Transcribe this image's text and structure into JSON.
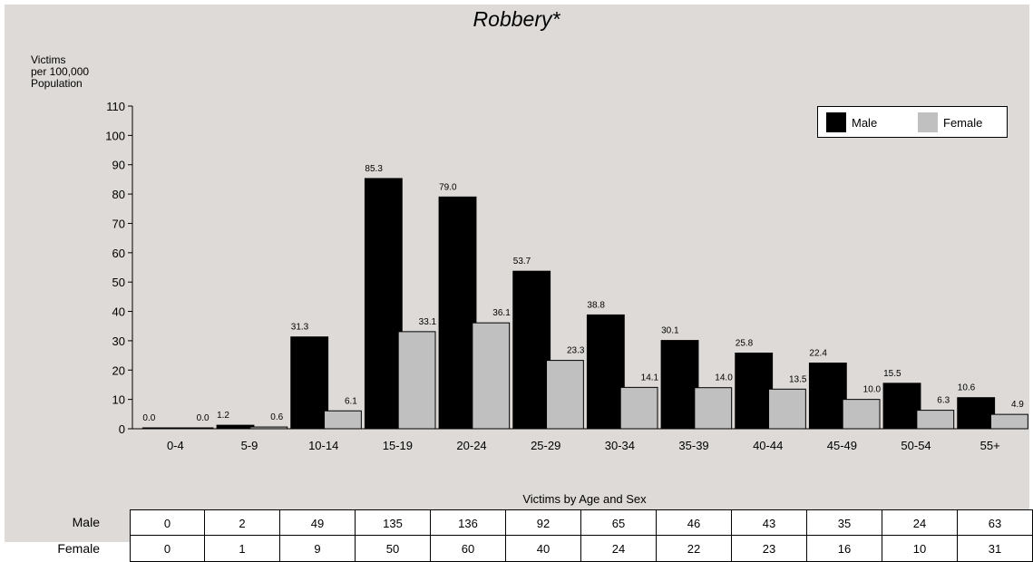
{
  "chart_data": {
    "type": "bar",
    "title": "Robbery*",
    "ylabel": "Victims\nper 100,000\nPopulation",
    "xlabel": "Victims by Age and Sex",
    "ylim": [
      0,
      110
    ],
    "yticks": [
      0,
      10,
      20,
      30,
      40,
      50,
      60,
      70,
      80,
      90,
      100,
      110
    ],
    "grid": false,
    "legend_position": "top-right",
    "categories": [
      "0-4",
      "5-9",
      "10-14",
      "15-19",
      "20-24",
      "25-29",
      "30-34",
      "35-39",
      "40-44",
      "45-49",
      "50-54",
      "55+"
    ],
    "series": [
      {
        "name": "Male",
        "color": "#000000",
        "values": [
          0.0,
          1.2,
          31.3,
          85.3,
          79.0,
          53.7,
          38.8,
          30.1,
          25.8,
          22.4,
          15.5,
          10.6
        ]
      },
      {
        "name": "Female",
        "color": "#c0c0c0",
        "values": [
          0.0,
          0.6,
          6.1,
          33.1,
          36.1,
          23.3,
          14.1,
          14.0,
          13.5,
          10.0,
          6.3,
          4.9
        ]
      }
    ],
    "data_labels": {
      "Male": [
        "0.0",
        "1.2",
        "31.3",
        "85.3",
        "79.0",
        "53.7",
        "38.8",
        "30.1",
        "25.8",
        "22.4",
        "15.5",
        "10.6"
      ],
      "Female": [
        "0.0",
        "0.6",
        "6.1",
        "33.1",
        "36.1",
        "23.3",
        "14.1",
        "14.0",
        "13.5",
        "10.0",
        "6.3",
        "4.9"
      ]
    },
    "table": {
      "caption": "Victims by Age and Sex",
      "rows": [
        {
          "label": "Male",
          "values": [
            "0",
            "2",
            "49",
            "135",
            "136",
            "92",
            "65",
            "46",
            "43",
            "35",
            "24",
            "63"
          ]
        },
        {
          "label": "Female",
          "values": [
            "0",
            "1",
            "9",
            "50",
            "60",
            "40",
            "24",
            "22",
            "23",
            "16",
            "10",
            "31"
          ]
        }
      ]
    }
  },
  "colors": {
    "background": "#dddad7",
    "male": "#000000",
    "female": "#c0c0c0"
  }
}
